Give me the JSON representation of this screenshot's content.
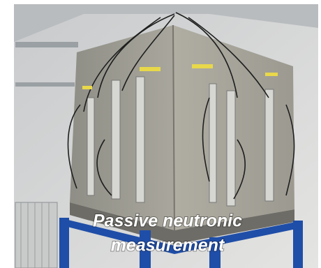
{
  "caption": {
    "lines": [
      "Passive neutronic",
      "measurement"
    ]
  }
}
